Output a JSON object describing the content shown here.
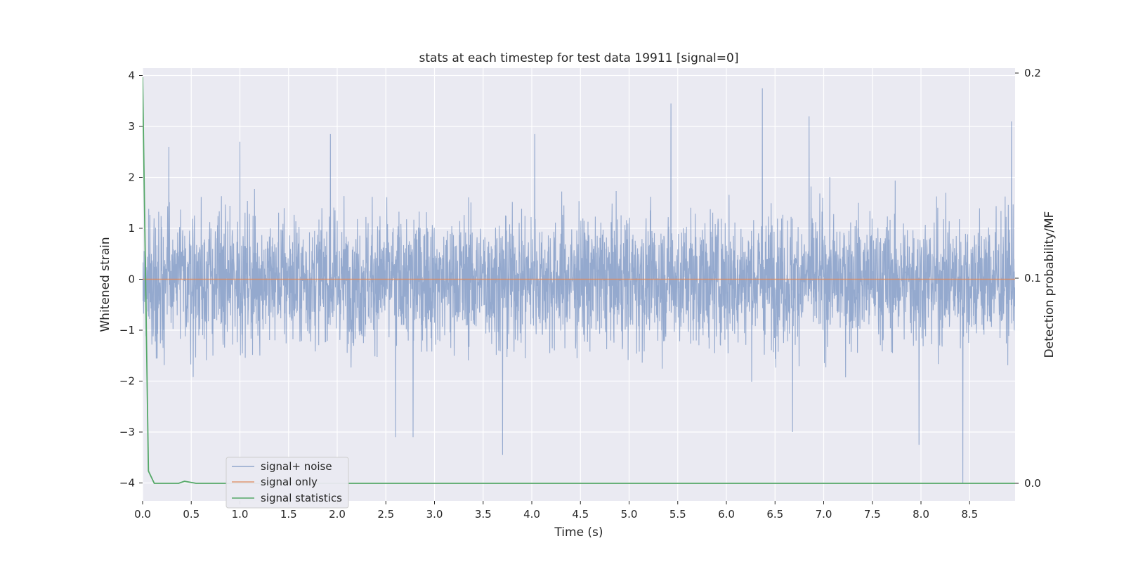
{
  "chart_data": {
    "type": "line",
    "title": "stats at each timestep for test data 19911 [signal=0]",
    "xlabel": "Time (s)",
    "ylabel": "Whitened strain",
    "ylabel_right": "Detection probability/MF",
    "xlim": [
      0.0,
      9.0
    ],
    "ylim": [
      -4.15,
      4.15
    ],
    "ylim_right": [
      -0.01,
      0.205
    ],
    "x_ticks": [
      "0.0",
      "0.5",
      "1.0",
      "1.5",
      "2.0",
      "2.5",
      "3.0",
      "3.5",
      "4.0",
      "4.5",
      "5.0",
      "5.5",
      "6.0",
      "6.5",
      "7.0",
      "7.5",
      "8.0",
      "8.5"
    ],
    "y_ticks": [
      "4",
      "3",
      "2",
      "1",
      "0",
      "−1",
      "−2",
      "−3",
      "−4"
    ],
    "y_ticks_right": [
      "0.2",
      "0.1",
      "0.0"
    ],
    "grid": true,
    "legend_position": "lower-left",
    "series": [
      {
        "name": "signal+ noise",
        "color": "#4c72b0",
        "style": "dense noise, roughly ±1.5 with spikes to ±3.5",
        "peaks": [
          [
            0.27,
            2.6
          ],
          [
            1.0,
            2.7
          ],
          [
            1.93,
            2.85
          ],
          [
            2.78,
            -3.1
          ],
          [
            2.6,
            -3.1
          ],
          [
            3.7,
            -3.45
          ],
          [
            4.03,
            2.85
          ],
          [
            5.43,
            3.45
          ],
          [
            6.37,
            3.75
          ],
          [
            6.85,
            3.2
          ],
          [
            6.68,
            -3.0
          ],
          [
            7.98,
            -3.25
          ],
          [
            8.43,
            -4.0
          ],
          [
            8.93,
            3.1
          ]
        ]
      },
      {
        "name": "signal only",
        "color": "#dd8452",
        "points": [
          [
            0.0,
            0.0
          ],
          [
            9.0,
            0.0
          ]
        ]
      },
      {
        "name": "signal statistics",
        "color": "#55a868",
        "axis": "right",
        "points": [
          [
            0.0,
            0.198
          ],
          [
            0.03,
            0.1
          ],
          [
            0.06,
            0.006
          ],
          [
            0.12,
            0.0
          ],
          [
            0.37,
            0.0
          ],
          [
            0.43,
            0.001
          ],
          [
            0.55,
            0.0
          ],
          [
            9.0,
            0.0
          ]
        ]
      }
    ]
  }
}
